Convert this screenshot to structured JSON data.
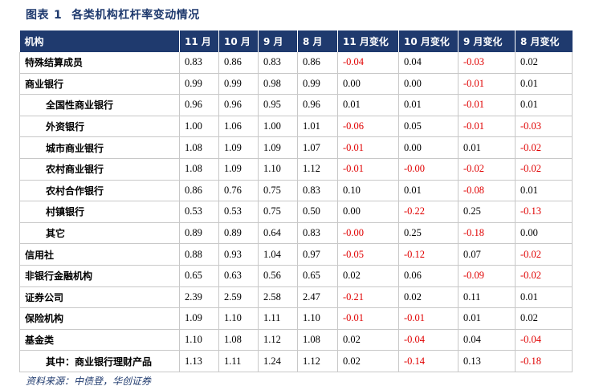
{
  "title": {
    "prefix": "图表",
    "number": "1",
    "text": "各类机构杠杆率变动情况"
  },
  "table": {
    "headers": [
      "机构",
      "11 月",
      "10 月",
      "9 月",
      "8 月",
      "11 月变化",
      "10 月变化",
      "9 月变化",
      "8 月变化"
    ],
    "rows": [
      {
        "name": "特殊结算成员",
        "indent": false,
        "values": [
          "0.83",
          "0.86",
          "0.83",
          "0.86",
          "-0.04",
          "0.04",
          "-0.03",
          "0.02"
        ]
      },
      {
        "name": "商业银行",
        "indent": false,
        "values": [
          "0.99",
          "0.99",
          "0.98",
          "0.99",
          "0.00",
          "0.00",
          "-0.01",
          "0.01"
        ]
      },
      {
        "name": "全国性商业银行",
        "indent": true,
        "values": [
          "0.96",
          "0.96",
          "0.95",
          "0.96",
          "0.01",
          "0.01",
          "-0.01",
          "0.01"
        ]
      },
      {
        "name": "外资银行",
        "indent": true,
        "values": [
          "1.00",
          "1.06",
          "1.00",
          "1.01",
          "-0.06",
          "0.05",
          "-0.01",
          "-0.03"
        ]
      },
      {
        "name": "城市商业银行",
        "indent": true,
        "values": [
          "1.08",
          "1.09",
          "1.09",
          "1.07",
          "-0.01",
          "0.00",
          "0.01",
          "-0.02"
        ]
      },
      {
        "name": "农村商业银行",
        "indent": true,
        "values": [
          "1.08",
          "1.09",
          "1.10",
          "1.12",
          "-0.01",
          "-0.00",
          "-0.02",
          "-0.02"
        ]
      },
      {
        "name": "农村合作银行",
        "indent": true,
        "values": [
          "0.86",
          "0.76",
          "0.75",
          "0.83",
          "0.10",
          "0.01",
          "-0.08",
          "0.01"
        ]
      },
      {
        "name": "村镇银行",
        "indent": true,
        "values": [
          "0.53",
          "0.53",
          "0.75",
          "0.50",
          "0.00",
          "-0.22",
          "0.25",
          "-0.13"
        ]
      },
      {
        "name": "其它",
        "indent": true,
        "values": [
          "0.89",
          "0.89",
          "0.64",
          "0.83",
          "-0.00",
          "0.25",
          "-0.18",
          "0.00"
        ]
      },
      {
        "name": "信用社",
        "indent": false,
        "values": [
          "0.88",
          "0.93",
          "1.04",
          "0.97",
          "-0.05",
          "-0.12",
          "0.07",
          "-0.02"
        ]
      },
      {
        "name": "非银行金融机构",
        "indent": false,
        "values": [
          "0.65",
          "0.63",
          "0.56",
          "0.65",
          "0.02",
          "0.06",
          "-0.09",
          "-0.02"
        ]
      },
      {
        "name": "证券公司",
        "indent": false,
        "values": [
          "2.39",
          "2.59",
          "2.58",
          "2.47",
          "-0.21",
          "0.02",
          "0.11",
          "0.01"
        ]
      },
      {
        "name": "保险机构",
        "indent": false,
        "values": [
          "1.09",
          "1.10",
          "1.11",
          "1.10",
          "-0.01",
          "-0.01",
          "0.01",
          "0.02"
        ]
      },
      {
        "name": "基金类",
        "indent": false,
        "values": [
          "1.10",
          "1.08",
          "1.12",
          "1.08",
          "0.02",
          "-0.04",
          "0.04",
          "-0.04"
        ]
      },
      {
        "name": "其中：商业银行理财产品",
        "indent": true,
        "values": [
          "1.13",
          "1.11",
          "1.24",
          "1.12",
          "0.02",
          "-0.14",
          "0.13",
          "-0.18"
        ]
      }
    ]
  },
  "source": "资料来源：中债登，华创证券",
  "colors": {
    "header_bg": "#1f3a6e",
    "negative": "#e00000",
    "title": "#1f3a6e"
  }
}
